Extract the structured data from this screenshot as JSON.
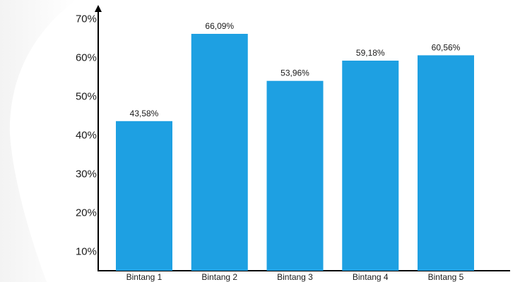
{
  "chart_data": {
    "type": "bar",
    "categories": [
      "Bintang 1",
      "Bintang 2",
      "Bintang 3",
      "Bintang 4",
      "Bintang 5"
    ],
    "values": [
      43.58,
      66.09,
      53.96,
      59.18,
      60.56
    ],
    "data_labels": [
      "43,58%",
      "66,09%",
      "53,96%",
      "59,18%",
      "60,56%"
    ],
    "y_ticks": [
      10,
      20,
      30,
      40,
      50,
      60,
      70
    ],
    "y_tick_labels": [
      "10%",
      "20%",
      "30%",
      "40%",
      "50%",
      "60%",
      "70%"
    ],
    "ylim": [
      5,
      73
    ],
    "title": "",
    "xlabel": "",
    "ylabel": "",
    "grid": false,
    "bar_color": "#1ea0e2",
    "axis_color": "#000000"
  }
}
